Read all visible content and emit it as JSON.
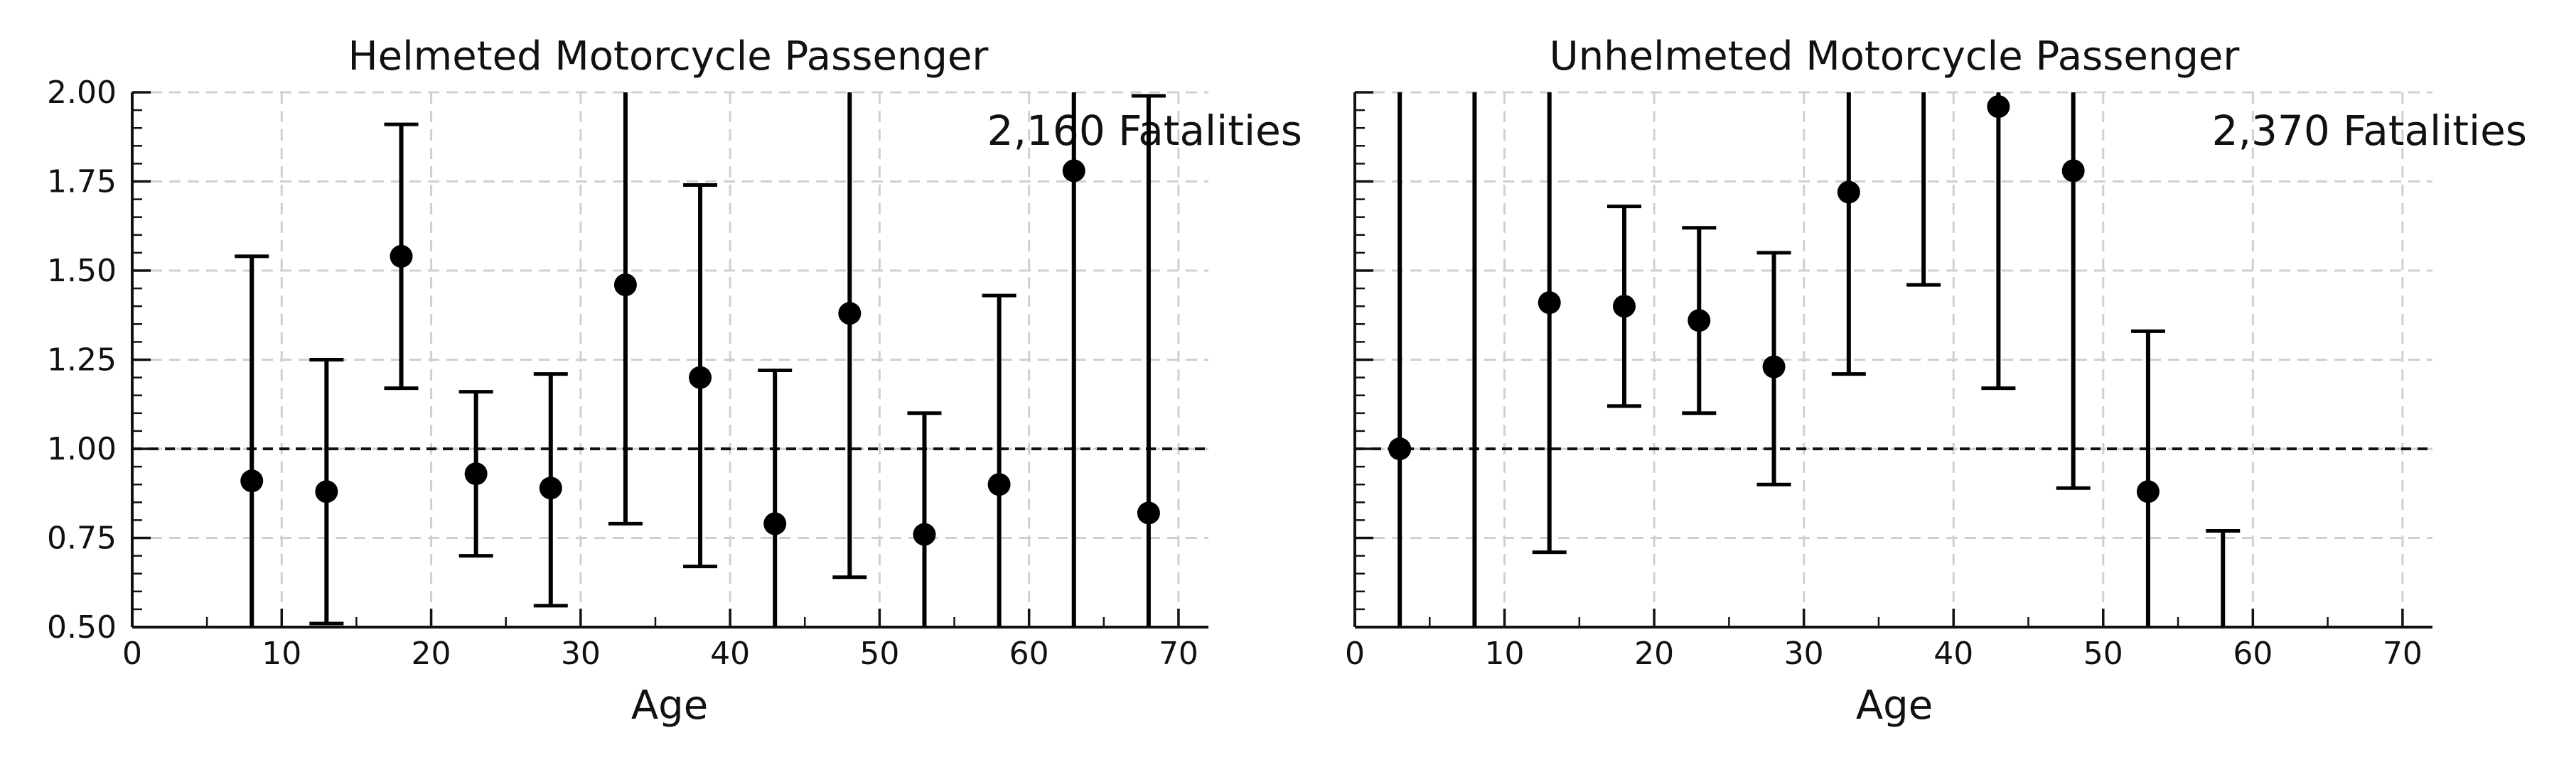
{
  "chart_data": [
    {
      "type": "scatter",
      "title": "Helmeted Motorcycle Passenger",
      "annotation": "2,160 Fatalities",
      "xlabel": "Age",
      "ylabel": "",
      "xlim": [
        0,
        72
      ],
      "ylim": [
        0.5,
        2.0
      ],
      "xticks": [
        "0",
        "10",
        "20",
        "30",
        "40",
        "50",
        "60",
        "70"
      ],
      "yticks": [
        "0.50",
        "0.75",
        "1.00",
        "1.25",
        "1.50",
        "1.75",
        "2.00"
      ],
      "reference_line": 1.0,
      "grid": true,
      "points": [
        {
          "x": 8,
          "y": 0.91,
          "low": 0.5,
          "high": 1.54
        },
        {
          "x": 13,
          "y": 0.88,
          "low": 0.51,
          "high": 1.25
        },
        {
          "x": 18,
          "y": 1.54,
          "low": 1.17,
          "high": 1.91
        },
        {
          "x": 23,
          "y": 0.93,
          "low": 0.7,
          "high": 1.16
        },
        {
          "x": 28,
          "y": 0.89,
          "low": 0.56,
          "high": 1.21
        },
        {
          "x": 33,
          "y": 1.46,
          "low": 0.79,
          "high": 2.0
        },
        {
          "x": 38,
          "y": 1.2,
          "low": 0.67,
          "high": 1.74
        },
        {
          "x": 43,
          "y": 0.79,
          "low": 0.5,
          "high": 1.22
        },
        {
          "x": 48,
          "y": 1.38,
          "low": 0.64,
          "high": 2.0
        },
        {
          "x": 53,
          "y": 0.76,
          "low": 0.5,
          "high": 1.1
        },
        {
          "x": 58,
          "y": 0.9,
          "low": 0.5,
          "high": 1.43
        },
        {
          "x": 63,
          "y": 1.78,
          "low": 0.5,
          "high": 2.0
        },
        {
          "x": 68,
          "y": 0.82,
          "low": 0.5,
          "high": 1.99
        }
      ]
    },
    {
      "type": "scatter",
      "title": "Unhelmeted Motorcycle Passenger",
      "annotation": "2,370 Fatalities",
      "xlabel": "Age",
      "ylabel": "",
      "xlim": [
        0,
        72
      ],
      "ylim": [
        0.5,
        2.0
      ],
      "xticks": [
        "0",
        "10",
        "20",
        "30",
        "40",
        "50",
        "60",
        "70"
      ],
      "yticks": [],
      "reference_line": 1.0,
      "grid": true,
      "points": [
        {
          "x": 3,
          "y": 1.0,
          "low": 0.5,
          "high": 2.0
        },
        {
          "x": 8,
          "y": null,
          "low": 0.5,
          "high": 2.0
        },
        {
          "x": 13,
          "y": 1.41,
          "low": 0.71,
          "high": 2.0
        },
        {
          "x": 18,
          "y": 1.4,
          "low": 1.12,
          "high": 1.68
        },
        {
          "x": 23,
          "y": 1.36,
          "low": 1.1,
          "high": 1.62
        },
        {
          "x": 28,
          "y": 1.23,
          "low": 0.9,
          "high": 1.55
        },
        {
          "x": 33,
          "y": 1.72,
          "low": 1.21,
          "high": 2.0
        },
        {
          "x": 38,
          "y": null,
          "low": 1.46,
          "high": 2.0
        },
        {
          "x": 43,
          "y": 1.96,
          "low": 1.17,
          "high": 2.0
        },
        {
          "x": 48,
          "y": 1.78,
          "low": 0.89,
          "high": 2.0
        },
        {
          "x": 53,
          "y": 0.88,
          "low": 0.5,
          "high": 1.33
        },
        {
          "x": 58,
          "y": null,
          "low": 0.5,
          "high": 0.77
        }
      ]
    }
  ]
}
